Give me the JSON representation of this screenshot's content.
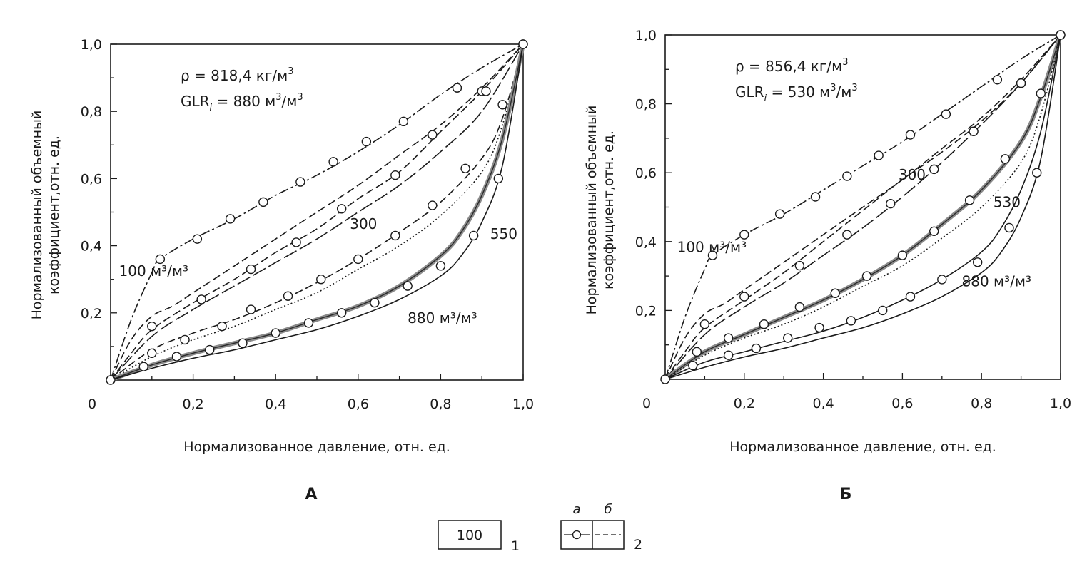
{
  "legend": {
    "box_value": "100",
    "item1_number": "1",
    "item2_number": "2",
    "sub_a": "а",
    "sub_b": "б"
  },
  "chart_data": [
    {
      "type": "line",
      "panel_label": "А",
      "xlabel": "Нормализованное давление, отн. ед.",
      "ylabel_line1": "Нормализованный объемный",
      "ylabel_line2": "коэффициент,отн. ед.",
      "xlim": [
        0,
        1
      ],
      "ylim": [
        0,
        1
      ],
      "x_ticks": [
        "0",
        "0,2",
        "0,4",
        "0,6",
        "0,8",
        "1,0"
      ],
      "y_ticks": [
        "0,2",
        "0,4",
        "0,6",
        "0,8",
        "1,0"
      ],
      "annotation": {
        "rho_prefix": "ρ = 818,4 кг/м",
        "rho_exp": "3",
        "glr_main": "GLR",
        "glr_sub": "i",
        "glr_mid": " = 880 м",
        "glr_exp1": "3",
        "glr_tail": "/м",
        "glr_exp2": "3"
      },
      "curve_labels": [
        {
          "text": "100 м³/м³",
          "at_x": 0.02,
          "at_y": 0.31
        },
        {
          "text": "300",
          "at_x": 0.58,
          "at_y": 0.45
        },
        {
          "text": "550",
          "at_x": 0.92,
          "at_y": 0.42
        },
        {
          "text": "880 м³/м³",
          "at_x": 0.72,
          "at_y": 0.17
        }
      ],
      "series": [
        {
          "GLR": 100,
          "kind": "a",
          "style": "dashdot",
          "x": [
            0,
            0.05,
            0.1,
            0.12,
            0.2,
            0.3,
            0.4,
            0.5,
            0.6,
            0.7,
            0.8,
            0.9,
            1.0
          ],
          "y": [
            0,
            0.18,
            0.32,
            0.36,
            0.42,
            0.48,
            0.55,
            0.61,
            0.68,
            0.76,
            0.85,
            0.93,
            1.0
          ],
          "markers_x": [
            0.12,
            0.21,
            0.29,
            0.37,
            0.46,
            0.54,
            0.62,
            0.71,
            0.84,
            0.9,
            1.0
          ],
          "markers_y": [
            0.36,
            0.42,
            0.48,
            0.53,
            0.59,
            0.65,
            0.71,
            0.77,
            0.87,
            0.86,
            1.0
          ]
        },
        {
          "GLR": 100,
          "kind": "b",
          "style": "dash",
          "x": [
            0,
            0.05,
            0.1,
            0.15,
            0.2,
            0.3,
            0.4,
            0.5,
            0.6,
            0.7,
            0.8,
            0.9,
            1.0
          ],
          "y": [
            0,
            0.12,
            0.19,
            0.22,
            0.26,
            0.34,
            0.42,
            0.5,
            0.58,
            0.67,
            0.76,
            0.87,
            1.0
          ]
        },
        {
          "GLR": 300,
          "kind": "a",
          "style": "dash",
          "x": [
            0,
            0.05,
            0.1,
            0.2,
            0.3,
            0.4,
            0.5,
            0.6,
            0.7,
            0.8,
            0.9,
            1.0
          ],
          "y": [
            0,
            0.08,
            0.15,
            0.23,
            0.3,
            0.38,
            0.45,
            0.54,
            0.62,
            0.74,
            0.86,
            1.0
          ],
          "markers_x": [
            0.1,
            0.22,
            0.34,
            0.45,
            0.56,
            0.69,
            0.78,
            0.91
          ],
          "markers_y": [
            0.16,
            0.24,
            0.33,
            0.41,
            0.51,
            0.61,
            0.73,
            0.86
          ]
        },
        {
          "GLR": 300,
          "kind": "b",
          "style": "longdash",
          "x": [
            0,
            0.1,
            0.2,
            0.3,
            0.4,
            0.5,
            0.6,
            0.7,
            0.8,
            0.9,
            1.0
          ],
          "y": [
            0,
            0.13,
            0.21,
            0.28,
            0.35,
            0.42,
            0.5,
            0.58,
            0.68,
            0.8,
            1.0
          ]
        },
        {
          "GLR": 550,
          "kind": "a",
          "style": "dash",
          "x": [
            0,
            0.1,
            0.2,
            0.3,
            0.4,
            0.5,
            0.6,
            0.7,
            0.8,
            0.9,
            0.95,
            1.0
          ],
          "y": [
            0,
            0.09,
            0.14,
            0.18,
            0.23,
            0.29,
            0.36,
            0.44,
            0.53,
            0.66,
            0.78,
            1.0
          ],
          "markers_x": [
            0.1,
            0.18,
            0.27,
            0.34,
            0.43,
            0.51,
            0.6,
            0.69,
            0.78,
            0.86,
            0.95
          ],
          "markers_y": [
            0.08,
            0.12,
            0.16,
            0.21,
            0.25,
            0.3,
            0.36,
            0.43,
            0.52,
            0.63,
            0.82
          ]
        },
        {
          "GLR": 550,
          "kind": "b",
          "style": "dotted",
          "x": [
            0,
            0.1,
            0.2,
            0.3,
            0.4,
            0.5,
            0.6,
            0.7,
            0.8,
            0.9,
            0.95,
            1.0
          ],
          "y": [
            0,
            0.07,
            0.12,
            0.16,
            0.21,
            0.26,
            0.33,
            0.4,
            0.49,
            0.62,
            0.76,
            1.0
          ]
        },
        {
          "GLR": 880,
          "kind": "a",
          "style": "solid-thick",
          "x": [
            0,
            0.1,
            0.2,
            0.3,
            0.4,
            0.5,
            0.6,
            0.7,
            0.8,
            0.85,
            0.9,
            0.95,
            1.0
          ],
          "y": [
            0,
            0.045,
            0.08,
            0.11,
            0.14,
            0.18,
            0.22,
            0.28,
            0.37,
            0.44,
            0.55,
            0.72,
            1.0
          ],
          "markers_x": [
            0.08,
            0.16,
            0.24,
            0.32,
            0.4,
            0.48,
            0.56,
            0.64,
            0.72,
            0.8,
            0.88,
            0.94,
            1.0
          ],
          "markers_y": [
            0.04,
            0.07,
            0.09,
            0.11,
            0.14,
            0.17,
            0.2,
            0.23,
            0.28,
            0.34,
            0.43,
            0.6,
            1.0
          ]
        },
        {
          "GLR": 880,
          "kind": "b",
          "style": "solid",
          "x": [
            0,
            0.1,
            0.2,
            0.3,
            0.4,
            0.5,
            0.6,
            0.7,
            0.8,
            0.85,
            0.9,
            0.95,
            1.0
          ],
          "y": [
            0,
            0.035,
            0.065,
            0.09,
            0.12,
            0.15,
            0.19,
            0.24,
            0.31,
            0.37,
            0.47,
            0.64,
            1.0
          ]
        }
      ]
    },
    {
      "type": "line",
      "panel_label": "Б",
      "xlabel": "Нормализованное давление, отн. ед.",
      "ylabel_line1": "Нормализованный объемный",
      "ylabel_line2": "коэффициент,отн. ед.",
      "xlim": [
        0,
        1
      ],
      "ylim": [
        0,
        1
      ],
      "x_ticks": [
        "0",
        "0,2",
        "0,4",
        "0,6",
        "0,8",
        "1,0"
      ],
      "y_ticks": [
        "0,2",
        "0,4",
        "0,6",
        "0,8",
        "1,0"
      ],
      "annotation": {
        "rho_prefix": "ρ = 856,4 кг/м",
        "rho_exp": "3",
        "glr_main": "GLR",
        "glr_sub": "i",
        "glr_mid": " = 530 м",
        "glr_exp1": "3",
        "glr_tail": "/м",
        "glr_exp2": "3"
      },
      "curve_labels": [
        {
          "text": "100 м³/м³",
          "at_x": 0.03,
          "at_y": 0.37
        },
        {
          "text": "300",
          "at_x": 0.59,
          "at_y": 0.58
        },
        {
          "text": "530",
          "at_x": 0.83,
          "at_y": 0.5
        },
        {
          "text": "880 м³/м³",
          "at_x": 0.75,
          "at_y": 0.27
        }
      ],
      "series": [
        {
          "GLR": 100,
          "kind": "a",
          "style": "dashdot",
          "x": [
            0,
            0.05,
            0.1,
            0.12,
            0.2,
            0.3,
            0.4,
            0.5,
            0.6,
            0.7,
            0.8,
            0.9,
            1.0
          ],
          "y": [
            0,
            0.18,
            0.32,
            0.36,
            0.42,
            0.48,
            0.55,
            0.62,
            0.69,
            0.77,
            0.85,
            0.93,
            1.0
          ],
          "markers_x": [
            0.12,
            0.2,
            0.29,
            0.38,
            0.46,
            0.54,
            0.62,
            0.71,
            0.84,
            0.9,
            1.0
          ],
          "markers_y": [
            0.36,
            0.42,
            0.48,
            0.53,
            0.59,
            0.65,
            0.71,
            0.77,
            0.87,
            0.86,
            1.0
          ]
        },
        {
          "GLR": 100,
          "kind": "b",
          "style": "dash",
          "x": [
            0,
            0.05,
            0.1,
            0.15,
            0.2,
            0.3,
            0.4,
            0.5,
            0.6,
            0.7,
            0.8,
            0.9,
            1.0
          ],
          "y": [
            0,
            0.12,
            0.19,
            0.22,
            0.26,
            0.34,
            0.42,
            0.5,
            0.58,
            0.67,
            0.76,
            0.87,
            1.0
          ]
        },
        {
          "GLR": 300,
          "kind": "a",
          "style": "dash",
          "x": [
            0,
            0.05,
            0.1,
            0.2,
            0.3,
            0.4,
            0.5,
            0.6,
            0.7,
            0.8,
            0.9,
            1.0
          ],
          "y": [
            0,
            0.08,
            0.15,
            0.23,
            0.31,
            0.4,
            0.49,
            0.58,
            0.66,
            0.75,
            0.86,
            1.0
          ],
          "markers_x": [
            0.1,
            0.2,
            0.34,
            0.46,
            0.57,
            0.68,
            0.78,
            0.9
          ],
          "markers_y": [
            0.16,
            0.24,
            0.33,
            0.42,
            0.51,
            0.61,
            0.72,
            0.86
          ]
        },
        {
          "GLR": 300,
          "kind": "b",
          "style": "longdash",
          "x": [
            0,
            0.1,
            0.2,
            0.3,
            0.4,
            0.5,
            0.6,
            0.7,
            0.8,
            0.9,
            1.0
          ],
          "y": [
            0,
            0.13,
            0.21,
            0.28,
            0.36,
            0.44,
            0.53,
            0.63,
            0.74,
            0.86,
            1.0
          ]
        },
        {
          "GLR": 530,
          "kind": "a",
          "style": "solid-thick",
          "x": [
            0,
            0.1,
            0.2,
            0.3,
            0.4,
            0.5,
            0.6,
            0.7,
            0.8,
            0.9,
            0.95,
            1.0
          ],
          "y": [
            0,
            0.08,
            0.13,
            0.18,
            0.23,
            0.29,
            0.36,
            0.45,
            0.55,
            0.69,
            0.82,
            1.0
          ],
          "markers_x": [
            0.08,
            0.16,
            0.25,
            0.34,
            0.43,
            0.51,
            0.6,
            0.68,
            0.77,
            0.86,
            0.95
          ],
          "markers_y": [
            0.08,
            0.12,
            0.16,
            0.21,
            0.25,
            0.3,
            0.36,
            0.43,
            0.52,
            0.64,
            0.83
          ]
        },
        {
          "GLR": 530,
          "kind": "b",
          "style": "dotted",
          "x": [
            0,
            0.1,
            0.2,
            0.3,
            0.4,
            0.5,
            0.6,
            0.7,
            0.8,
            0.9,
            0.95,
            1.0
          ],
          "y": [
            0,
            0.07,
            0.12,
            0.16,
            0.21,
            0.27,
            0.33,
            0.41,
            0.5,
            0.63,
            0.77,
            1.0
          ]
        },
        {
          "GLR": 880,
          "kind": "a",
          "style": "solid",
          "x": [
            0,
            0.1,
            0.2,
            0.3,
            0.4,
            0.5,
            0.6,
            0.7,
            0.8,
            0.85,
            0.9,
            0.95,
            1.0
          ],
          "y": [
            0,
            0.05,
            0.08,
            0.11,
            0.14,
            0.18,
            0.23,
            0.29,
            0.37,
            0.44,
            0.55,
            0.72,
            1.0
          ],
          "markers_x": [
            0.07,
            0.16,
            0.23,
            0.31,
            0.39,
            0.47,
            0.55,
            0.62,
            0.7,
            0.79,
            0.87,
            0.94,
            1.0
          ],
          "markers_y": [
            0.04,
            0.07,
            0.09,
            0.12,
            0.15,
            0.17,
            0.2,
            0.24,
            0.29,
            0.34,
            0.44,
            0.6,
            1.0
          ]
        },
        {
          "GLR": 880,
          "kind": "b",
          "style": "solid",
          "x": [
            0,
            0.1,
            0.2,
            0.3,
            0.4,
            0.5,
            0.6,
            0.7,
            0.8,
            0.85,
            0.9,
            0.95,
            1.0
          ],
          "y": [
            0,
            0.035,
            0.065,
            0.09,
            0.12,
            0.15,
            0.19,
            0.24,
            0.31,
            0.37,
            0.47,
            0.64,
            1.0
          ]
        }
      ]
    }
  ]
}
